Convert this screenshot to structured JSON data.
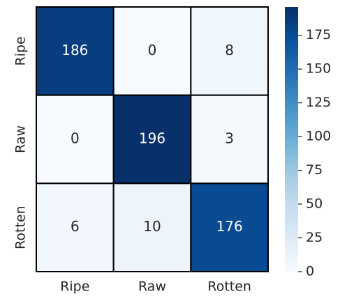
{
  "chart_data": {
    "type": "heatmap",
    "x_categories": [
      "Ripe",
      "Raw",
      "Rotten"
    ],
    "y_categories": [
      "Ripe",
      "Raw",
      "Rotten"
    ],
    "values": [
      [
        186,
        0,
        8
      ],
      [
        0,
        196,
        3
      ],
      [
        6,
        10,
        176
      ]
    ],
    "colormap": "Blues",
    "zlim": [
      0,
      196
    ],
    "zticks": [
      0,
      25,
      50,
      75,
      100,
      125,
      150,
      175
    ]
  }
}
